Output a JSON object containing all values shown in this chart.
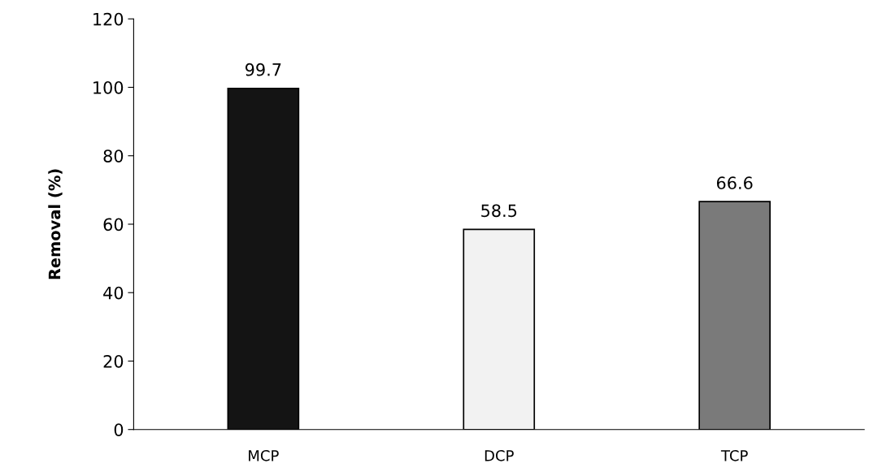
{
  "chart_data": {
    "type": "bar",
    "ylabel": "Removal (%)",
    "categories": [
      "MCP",
      "DCP",
      "TCP"
    ],
    "values": [
      99.7,
      58.5,
      66.6
    ],
    "colors": [
      "#141414",
      "#f2f2f2",
      "#7a7a7a"
    ],
    "ylim": [
      0,
      120
    ],
    "yticks": [
      0,
      20,
      40,
      60,
      80,
      100,
      120
    ],
    "grid": false,
    "data_labels": true
  }
}
